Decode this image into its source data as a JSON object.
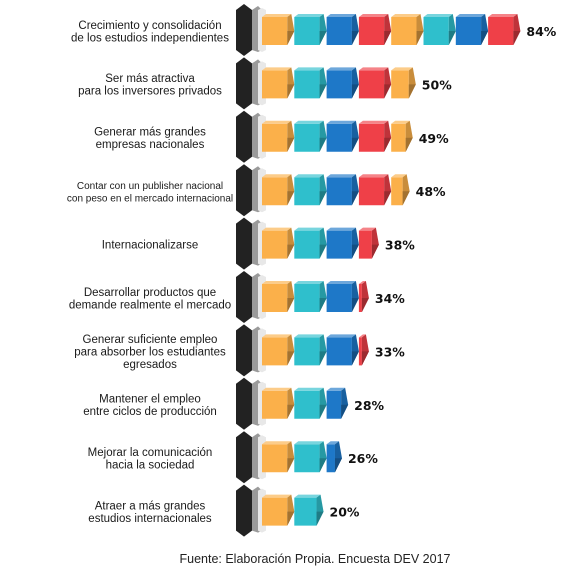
{
  "chart_data": {
    "type": "bar",
    "orientation": "horizontal",
    "value_unit": "%",
    "xlim": [
      0,
      100
    ],
    "categories": [
      [
        "Crecimiento y consolidación",
        "de los estudios independientes"
      ],
      [
        "Ser más atractiva",
        "para los inversores privados"
      ],
      [
        "Generar más grandes",
        "empresas nacionales"
      ],
      [
        "Contar con un publisher nacional",
        "con peso en el mercado internacional"
      ],
      [
        "Internacionalizarse"
      ],
      [
        "Desarrollar productos que",
        "demande realmente el mercado"
      ],
      [
        "Generar suficiente empleo",
        "para absorber los estudiantes",
        "egresados"
      ],
      [
        "Mantener el empleo",
        "entre ciclos de producción"
      ],
      [
        "Mejorar la comunicación",
        "hacia la sociedad"
      ],
      [
        "Atraer a más grandes",
        "estudios internacionales"
      ]
    ],
    "values": [
      84,
      50,
      49,
      48,
      38,
      34,
      33,
      28,
      26,
      20
    ],
    "value_labels": [
      "84%",
      "50%",
      "49%",
      "48%",
      "38%",
      "34%",
      "33%",
      "28%",
      "26%",
      "20%"
    ],
    "segment_colors": [
      "#fbb04a",
      "#2fbfcc",
      "#1e78c8",
      "#ef4048",
      "#fbb04a",
      "#2fbfcc",
      "#1e78c8",
      "#ef4048",
      "#fbb04a"
    ],
    "grid": false
  },
  "source_note": "Fuente: Elaboración Propia. Encuesta DEV 2017"
}
